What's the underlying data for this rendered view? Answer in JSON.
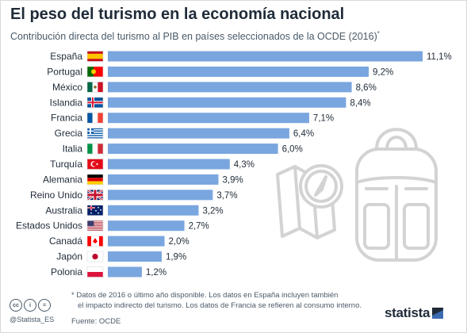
{
  "header": {
    "title": "El peso del turismo en la economía nacional",
    "subtitle": "Contribución directa del turismo al PIB en países seleccionados de la OCDE (2016)",
    "subtitle_mark": "*"
  },
  "colors": {
    "bar": "#7aa6df",
    "text": "#1f2b38",
    "muted": "#4a5a68"
  },
  "chart_data": {
    "type": "bar",
    "orientation": "horizontal",
    "categories": [
      "España",
      "Portugal",
      "México",
      "Islandia",
      "Francia",
      "Grecia",
      "Italia",
      "Turquía",
      "Alemania",
      "Reino Unido",
      "Australia",
      "Estados Unidos",
      "Canadá",
      "Japón",
      "Polonia"
    ],
    "values": [
      11.1,
      9.2,
      8.6,
      8.4,
      7.1,
      6.4,
      6.0,
      4.3,
      3.9,
      3.7,
      3.2,
      2.7,
      2.0,
      1.9,
      1.2
    ],
    "labels": [
      "11,1%",
      "9,2%",
      "8,6%",
      "8,4%",
      "7,1%",
      "6,4%",
      "6,0%",
      "4,3%",
      "3,9%",
      "3,7%",
      "3,2%",
      "2,7%",
      "2,0%",
      "1,9%",
      "1,2%"
    ],
    "flags": [
      "flag-spain",
      "flag-portugal",
      "flag-mexico",
      "flag-iceland",
      "flag-france",
      "flag-greece",
      "flag-italy",
      "flag-turkey",
      "flag-germany",
      "flag-united-kingdom",
      "flag-australia",
      "flag-united-states",
      "flag-canada",
      "flag-japan",
      "flag-poland"
    ],
    "xlim": [
      0,
      11.1
    ],
    "grid": false,
    "legend": "none"
  },
  "footer": {
    "note_line1": "* Datos de 2016 o último año disponible. Los datos en España incluyen también",
    "note_line2": "el impacto indirecto del turismo. Los datos de Francia se refieren al consumo interno.",
    "source": "Fuente: OCDE",
    "handle": "@Statista_ES",
    "brand": "statista",
    "license_icons": [
      "cc",
      "i",
      "="
    ]
  }
}
